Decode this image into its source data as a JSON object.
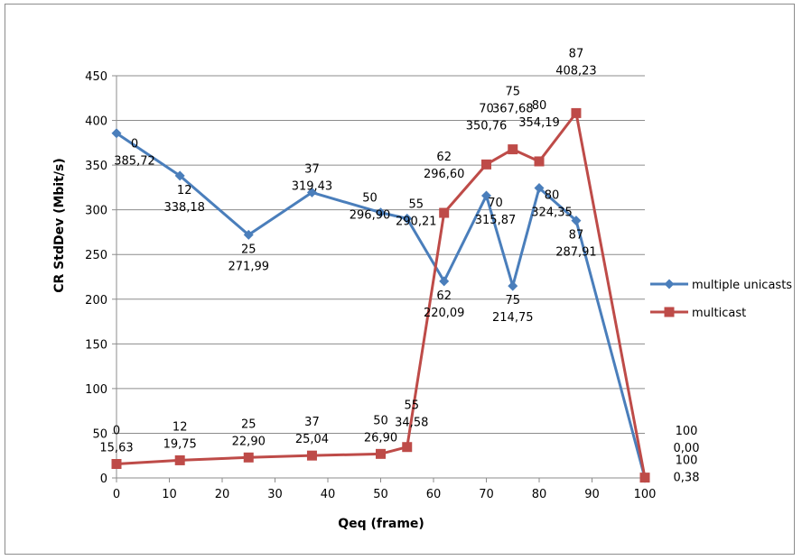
{
  "chart_data": {
    "type": "line",
    "title": "",
    "xlabel": "Qeq (frame)",
    "ylabel": "CR StdDev (Mbit/s)",
    "xlim": [
      0,
      100
    ],
    "ylim": [
      0,
      450
    ],
    "x_ticks": [
      "0",
      "10",
      "20",
      "30",
      "40",
      "50",
      "60",
      "70",
      "80",
      "90",
      "100"
    ],
    "y_ticks": [
      "0",
      "50",
      "100",
      "150",
      "200",
      "250",
      "300",
      "350",
      "400",
      "450"
    ],
    "grid": "horizontal",
    "legend_position": "right",
    "series": [
      {
        "name": "multiple unicasts",
        "color": "#4a7ebb",
        "marker": "diamond",
        "points": [
          {
            "x": 0,
            "y": 385.72,
            "label_x": "0",
            "label_y": "385,72"
          },
          {
            "x": 12,
            "y": 338.18,
            "label_x": "12",
            "label_y": "338,18"
          },
          {
            "x": 25,
            "y": 271.99,
            "label_x": "25",
            "label_y": "271,99"
          },
          {
            "x": 37,
            "y": 319.43,
            "label_x": "37",
            "label_y": "319,43"
          },
          {
            "x": 50,
            "y": 296.9,
            "label_x": "50",
            "label_y": "296,90"
          },
          {
            "x": 55,
            "y": 290.21,
            "label_x": "55",
            "label_y": "290,21"
          },
          {
            "x": 62,
            "y": 220.09,
            "label_x": "62",
            "label_y": "220,09"
          },
          {
            "x": 70,
            "y": 315.87,
            "label_x": "70",
            "label_y": "315,87"
          },
          {
            "x": 75,
            "y": 214.75,
            "label_x": "75",
            "label_y": "214,75"
          },
          {
            "x": 80,
            "y": 324.35,
            "label_x": "80",
            "label_y": "324,35"
          },
          {
            "x": 87,
            "y": 287.91,
            "label_x": "87",
            "label_y": "287,91"
          },
          {
            "x": 100,
            "y": 0.0,
            "label_x": "100",
            "label_y": "0,00"
          }
        ]
      },
      {
        "name": "multicast",
        "color": "#be4b48",
        "marker": "square",
        "points": [
          {
            "x": 0,
            "y": 15.63,
            "label_x": "0",
            "label_y": "15,63"
          },
          {
            "x": 12,
            "y": 19.75,
            "label_x": "12",
            "label_y": "19,75"
          },
          {
            "x": 25,
            "y": 22.9,
            "label_x": "25",
            "label_y": "22,90"
          },
          {
            "x": 37,
            "y": 25.04,
            "label_x": "37",
            "label_y": "25,04"
          },
          {
            "x": 50,
            "y": 26.9,
            "label_x": "50",
            "label_y": "26,90"
          },
          {
            "x": 55,
            "y": 34.58,
            "label_x": "55",
            "label_y": "34,58"
          },
          {
            "x": 62,
            "y": 296.6,
            "label_x": "62",
            "label_y": "296,60"
          },
          {
            "x": 70,
            "y": 350.76,
            "label_x": "70",
            "label_y": "350,76"
          },
          {
            "x": 75,
            "y": 367.68,
            "label_x": "75",
            "label_y": "367,68"
          },
          {
            "x": 80,
            "y": 354.19,
            "label_x": "80",
            "label_y": "354,19"
          },
          {
            "x": 87,
            "y": 408.23,
            "label_x": "87",
            "label_y": "408,23"
          },
          {
            "x": 100,
            "y": 0.38,
            "label_x": "100",
            "label_y": "0,38"
          }
        ]
      }
    ]
  }
}
